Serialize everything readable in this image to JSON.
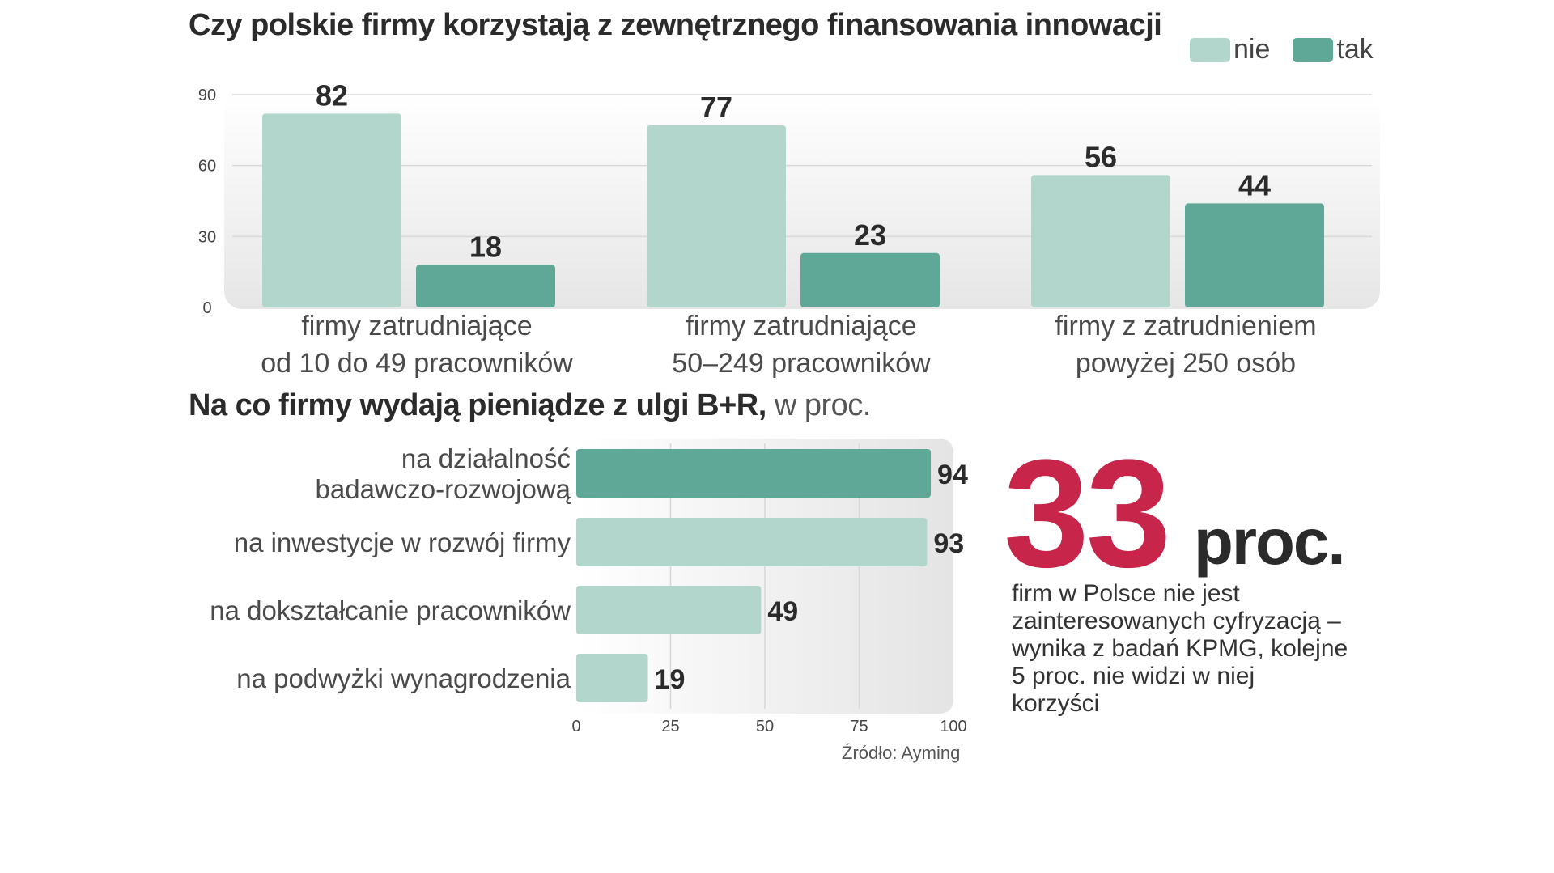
{
  "chart_data": [
    {
      "type": "bar",
      "title": "Czy polskie firmy korzystają z zewnętrznego finansowania innowacji",
      "categories": [
        [
          "firmy zatrudniające",
          "od 10 do 49 pracowników"
        ],
        [
          "firmy zatrudniające",
          "50–249 pracowników"
        ],
        [
          "firmy z zatrudnieniem",
          "powyżej 250 osób"
        ]
      ],
      "series": [
        {
          "name": "nie",
          "values": [
            82,
            77,
            56
          ],
          "color": "#b2d5cc"
        },
        {
          "name": "tak",
          "values": [
            18,
            23,
            44
          ],
          "color": "#5fa898"
        }
      ],
      "yticks": [
        0,
        30,
        60,
        90
      ],
      "ylim": [
        0,
        90
      ],
      "legend": "top-right",
      "grid": true
    },
    {
      "type": "bar",
      "orientation": "horizontal",
      "title": "Na co firmy wydają pieniądze z ulgi B+R,",
      "title_suffix": "w proc.",
      "categories": [
        [
          "na działalność",
          "badawczo-rozwojową"
        ],
        [
          "na inwestycje w rozwój firmy"
        ],
        [
          "na dokształcanie pracowników"
        ],
        [
          "na podwyżki wynagrodzenia"
        ]
      ],
      "values": [
        94,
        93,
        49,
        19
      ],
      "colors": [
        "#5fa898",
        "#b2d5cc",
        "#b2d5cc",
        "#b2d5cc"
      ],
      "xticks": [
        0,
        25,
        50,
        75,
        100
      ],
      "xlim": [
        0,
        100
      ],
      "grid": true
    }
  ],
  "callout": {
    "value": "33",
    "unit": "proc.",
    "text": "firm w Polsce nie jest\nzainteresowanych cyfryzacją –\nwynika z badań KPMG, kolejne\n5 proc. nie widzi w niej\nkorzyści",
    "value_color": "#c8254a"
  },
  "source": "Źródło: Ayming"
}
